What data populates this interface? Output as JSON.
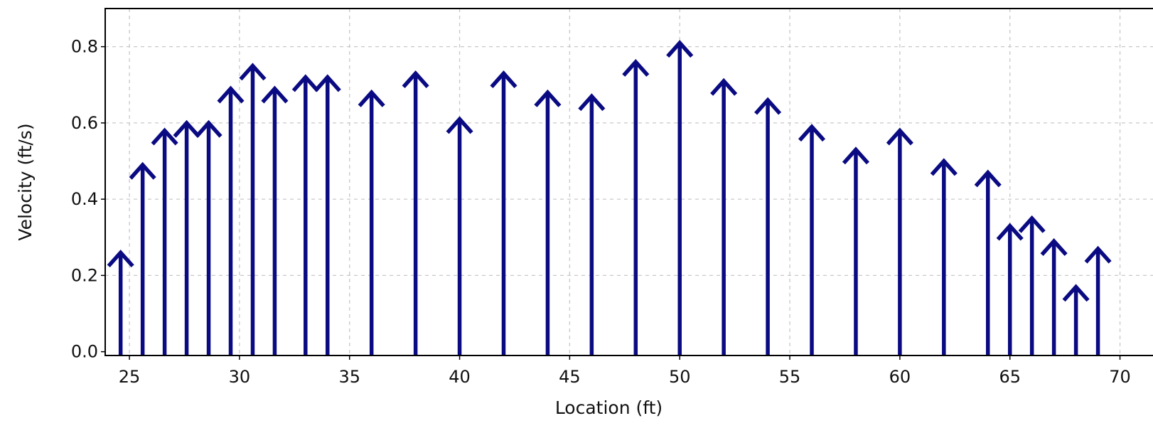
{
  "chart_data": {
    "type": "quiver",
    "xlabel": "Location (ft)",
    "ylabel": "Velocity (ft/s)",
    "xlim": [
      23.9,
      71.5
    ],
    "ylim": [
      -0.01,
      0.9
    ],
    "xticks": [
      25,
      30,
      35,
      40,
      45,
      50,
      55,
      60,
      65,
      70
    ],
    "yticks": [
      0.0,
      0.2,
      0.4,
      0.6,
      0.8
    ],
    "ytick_labels": [
      "0.0",
      "0.2",
      "0.4",
      "0.6",
      "0.8"
    ],
    "grid": true,
    "color": "#0a0a82",
    "series": [
      {
        "x": [
          24.6,
          25.6,
          26.6,
          27.6,
          28.6,
          29.6,
          30.6,
          31.6,
          33.0,
          34.0,
          36.0,
          38.0,
          40.0,
          42.0,
          44.0,
          46.0,
          48.0,
          50.0,
          52.0,
          54.0,
          56.0,
          58.0,
          60.0,
          62.0,
          64.0,
          65.0,
          66.0,
          67.0,
          68.0,
          69.0
        ],
        "values": [
          0.26,
          0.49,
          0.58,
          0.6,
          0.6,
          0.69,
          0.75,
          0.69,
          0.72,
          0.72,
          0.68,
          0.73,
          0.61,
          0.73,
          0.68,
          0.67,
          0.76,
          0.81,
          0.71,
          0.66,
          0.59,
          0.53,
          0.58,
          0.5,
          0.47,
          0.33,
          0.35,
          0.29,
          0.17,
          0.27
        ]
      }
    ]
  }
}
